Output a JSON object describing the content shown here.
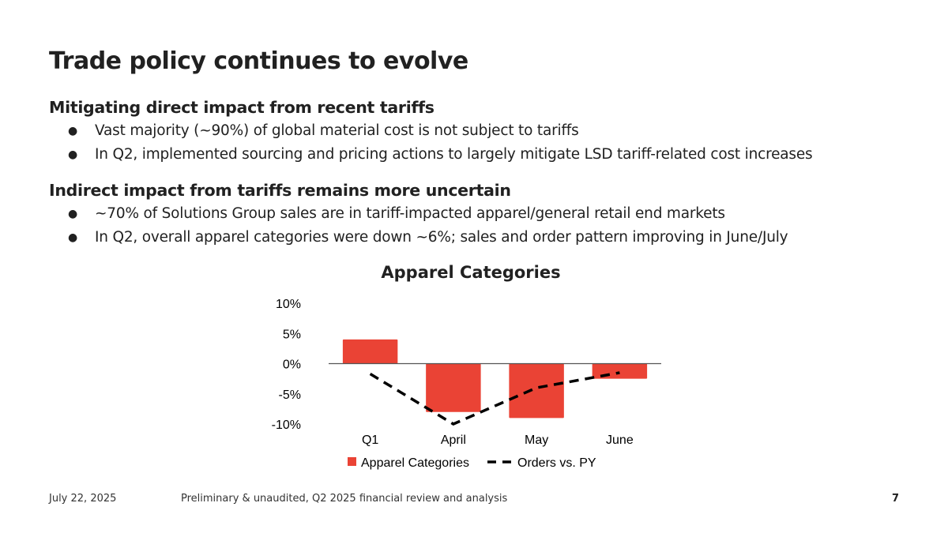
{
  "slide": {
    "title": "Trade policy continues to evolve",
    "sections": [
      {
        "heading": "Mitigating direct impact from recent tariffs",
        "bullets": [
          "Vast majority (~90%) of global material cost is not subject to tariffs",
          "In Q2, implemented sourcing and pricing actions to largely mitigate LSD tariff-related cost increases"
        ]
      },
      {
        "heading": "Indirect impact from tariffs remains more uncertain",
        "bullets": [
          "~70% of Solutions Group sales are in tariff-impacted apparel/general retail end markets",
          "In Q2, overall apparel categories were down ~6%; sales and order pattern improving in June/July"
        ]
      }
    ],
    "bullet_glyph": "●"
  },
  "footer": {
    "date": "July 22, 2025",
    "note": "Preliminary & unaudited, Q2 2025 financial review and analysis",
    "page": "7"
  },
  "chart_data": {
    "type": "bar",
    "title": "Apparel Categories",
    "categories": [
      "Q1",
      "April",
      "May",
      "June"
    ],
    "series": [
      {
        "name": "Apparel Categories",
        "kind": "bar",
        "color": "#EA4335",
        "values": [
          4,
          -8,
          -9,
          -2.5
        ]
      },
      {
        "name": "Orders vs. PY",
        "kind": "line",
        "style": "dashed",
        "color": "#000000",
        "values": [
          -1.7,
          -10,
          -4,
          -1.5
        ]
      }
    ],
    "xlabel": "",
    "ylabel": "",
    "ylim": [
      -10,
      10
    ],
    "yticks": [
      10,
      5,
      0,
      -5,
      -10
    ],
    "ytick_labels": [
      "10%",
      "5%",
      "0%",
      "-5%",
      "-10%"
    ],
    "grid": false,
    "legend": "bottom"
  }
}
